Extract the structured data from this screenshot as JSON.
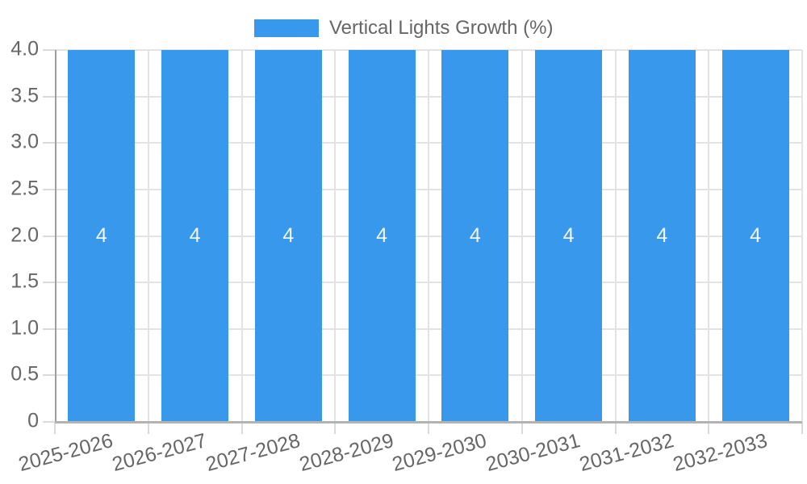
{
  "legend": {
    "label": "Vertical Lights Growth (%)",
    "position": "top"
  },
  "colors": {
    "bar": "#3899ec",
    "grid": "#e3e3e3",
    "tick": "#dadada",
    "axis_y": "#9e9e9e",
    "axis_x": "#b3b3b3",
    "tick_label": "#666666",
    "value_label": "#f4f4f6",
    "background": "#ffffff"
  },
  "chart_data": {
    "type": "bar",
    "title": "Vertical Lights Growth (%)",
    "categories": [
      "2025-2026",
      "2026-2027",
      "2027-2028",
      "2028-2029",
      "2029-2030",
      "2030-2031",
      "2031-2032",
      "2032-2033"
    ],
    "series": [
      {
        "name": "Vertical Lights Growth (%)",
        "values": [
          4,
          4,
          4,
          4,
          4,
          4,
          4,
          4
        ],
        "value_labels": [
          "4",
          "4",
          "4",
          "4",
          "4",
          "4",
          "4",
          "4"
        ],
        "color": "#3899ec"
      }
    ],
    "xlabel": "",
    "ylabel": "",
    "ylim": [
      0,
      4
    ],
    "yticks": [
      {
        "value": 0,
        "label": "0"
      },
      {
        "value": 0.5,
        "label": "0.5"
      },
      {
        "value": 1,
        "label": "1.0"
      },
      {
        "value": 1.5,
        "label": "1.5"
      },
      {
        "value": 2,
        "label": "2.0"
      },
      {
        "value": 2.5,
        "label": "2.5"
      },
      {
        "value": 3,
        "label": "3.0"
      },
      {
        "value": 3.5,
        "label": "3.5"
      },
      {
        "value": 4,
        "label": "4.0"
      }
    ],
    "grid": true,
    "legend_position": "top",
    "x_label_rotation_deg": -15
  }
}
